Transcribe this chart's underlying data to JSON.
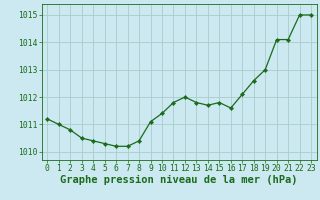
{
  "x": [
    0,
    1,
    2,
    3,
    4,
    5,
    6,
    7,
    8,
    9,
    10,
    11,
    12,
    13,
    14,
    15,
    16,
    17,
    18,
    19,
    20,
    21,
    22,
    23
  ],
  "y": [
    1011.2,
    1011.0,
    1010.8,
    1010.5,
    1010.4,
    1010.3,
    1010.2,
    1010.2,
    1010.4,
    1011.1,
    1011.4,
    1011.8,
    1012.0,
    1011.8,
    1011.7,
    1011.8,
    1011.6,
    1012.1,
    1012.6,
    1013.0,
    1014.1,
    1014.1,
    1015.0,
    1015.0
  ],
  "line_color": "#1a6b1a",
  "marker": "D",
  "marker_size": 2.2,
  "bg_color": "#cce8f0",
  "grid_color": "#aacccc",
  "xlabel": "Graphe pression niveau de la mer (hPa)",
  "xlabel_color": "#1a6b1a",
  "xlabel_fontsize": 7.5,
  "yticks": [
    1010,
    1011,
    1012,
    1013,
    1014,
    1015
  ],
  "xticks": [
    0,
    1,
    2,
    3,
    4,
    5,
    6,
    7,
    8,
    9,
    10,
    11,
    12,
    13,
    14,
    15,
    16,
    17,
    18,
    19,
    20,
    21,
    22,
    23
  ],
  "ylim": [
    1009.7,
    1015.4
  ],
  "xlim": [
    -0.5,
    23.5
  ],
  "tick_color": "#1a6b1a",
  "tick_fontsize": 5.8,
  "linewidth": 0.9
}
